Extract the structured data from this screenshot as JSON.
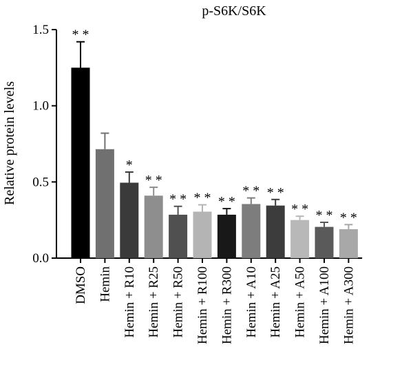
{
  "chart_data": {
    "type": "bar",
    "title": "p-S6K/S6K",
    "xlabel": "",
    "ylabel": "Relative protein levels",
    "ylim": [
      0,
      1.5
    ],
    "yticks": [
      "0.0",
      "0.5",
      "1.0",
      "1.5"
    ],
    "grid": false,
    "categories": [
      "DMSO",
      "Hemin",
      "Hemin + R10",
      "Hemin + R25",
      "Hemin + R50",
      "Hemin + R100",
      "Hemin + R300",
      "Hemin + A10",
      "Hemin + A25",
      "Hemin + A50",
      "Hemin + A100",
      "Hemin + A300"
    ],
    "values": [
      1.25,
      0.715,
      0.495,
      0.41,
      0.285,
      0.305,
      0.285,
      0.355,
      0.345,
      0.25,
      0.205,
      0.19
    ],
    "errors": [
      0.17,
      0.105,
      0.07,
      0.055,
      0.055,
      0.045,
      0.04,
      0.04,
      0.04,
      0.025,
      0.03,
      0.03
    ],
    "significance": [
      "**",
      "",
      "*",
      "**",
      "**",
      "**",
      "**",
      "**",
      "**",
      "**",
      "**",
      "**"
    ],
    "colors": [
      "#000000",
      "#707070",
      "#3a3a3a",
      "#8e8e8e",
      "#505050",
      "#b4b4b4",
      "#181818",
      "#7d7d7d",
      "#3c3c3c",
      "#b8b8b8",
      "#5a5a5a",
      "#a8a8a8"
    ]
  }
}
